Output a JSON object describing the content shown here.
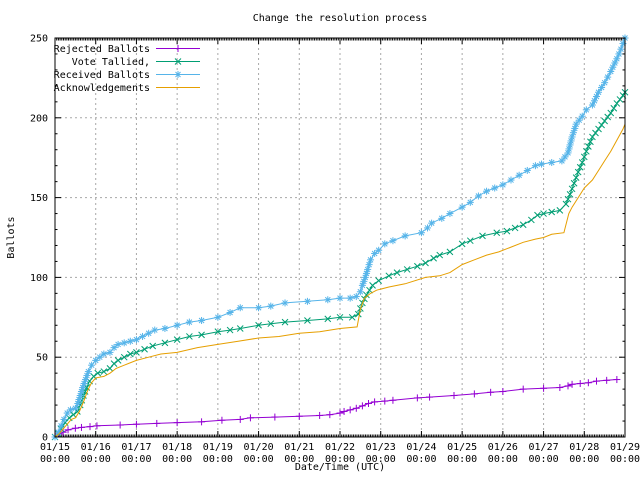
{
  "title": "Change the resolution process",
  "axes": {
    "xlabel": "Date/Time (UTC)",
    "ylabel": "Ballots",
    "x_tick_labels": [
      "01/15",
      "01/16",
      "01/17",
      "01/18",
      "01/19",
      "01/20",
      "01/21",
      "01/22",
      "01/23",
      "01/24",
      "01/25",
      "01/26",
      "01/27",
      "01/28",
      "01/29"
    ],
    "x_tick_sublabel": "00:00",
    "x_range_days": [
      0,
      14
    ],
    "x_minor_per_day": 24,
    "y_ticks": [
      0,
      50,
      100,
      150,
      200,
      250
    ],
    "y_minor_step": 10,
    "ylim": [
      0,
      250
    ],
    "grid": "dashed gray at major ticks"
  },
  "colors": {
    "background": "#ffffff",
    "border": "#000000",
    "grid": "#a8a8a8",
    "rejected": "#9400d3",
    "tallied": "#009e73",
    "received": "#56b4e9",
    "acknowledgements": "#e69f00"
  },
  "legend": {
    "position": "top-left inside",
    "entries": [
      "Rejected Ballots",
      "Vote Tallied,",
      "Received Ballots",
      "Acknowledgements"
    ]
  },
  "chart_data": {
    "type": "line",
    "title": "Change the resolution process",
    "xlabel": "Date/Time (UTC)",
    "ylabel": "Ballots",
    "x_unit": "days since 01/15 00:00 UTC",
    "xlim": [
      0,
      14
    ],
    "ylim": [
      0,
      250
    ],
    "legend_position": "top-left",
    "series": [
      {
        "name": "Rejected Ballots",
        "color": "#9400d3",
        "marker": "plus",
        "points": [
          [
            0,
            0
          ],
          [
            0.1,
            2
          ],
          [
            0.2,
            3
          ],
          [
            0.32,
            4.5
          ],
          [
            0.5,
            5.5
          ],
          [
            0.65,
            6
          ],
          [
            0.86,
            6.5
          ],
          [
            1.03,
            7
          ],
          [
            1.6,
            7.5
          ],
          [
            2.0,
            8
          ],
          [
            2.5,
            8.5
          ],
          [
            3.0,
            9
          ],
          [
            3.6,
            9.5
          ],
          [
            4.1,
            10.5
          ],
          [
            4.55,
            11
          ],
          [
            4.8,
            12
          ],
          [
            5.4,
            12.5
          ],
          [
            6.0,
            13
          ],
          [
            6.5,
            13.5
          ],
          [
            6.75,
            14
          ],
          [
            7.0,
            15
          ],
          [
            7.1,
            16
          ],
          [
            7.25,
            17
          ],
          [
            7.4,
            18
          ],
          [
            7.55,
            19.5
          ],
          [
            7.7,
            21
          ],
          [
            7.85,
            22
          ],
          [
            8.1,
            22.5
          ],
          [
            8.3,
            23
          ],
          [
            8.9,
            24.5
          ],
          [
            9.2,
            25
          ],
          [
            9.8,
            26
          ],
          [
            10.3,
            27
          ],
          [
            10.7,
            28
          ],
          [
            11.0,
            28.5
          ],
          [
            11.5,
            30
          ],
          [
            12.0,
            30.5
          ],
          [
            12.4,
            31
          ],
          [
            12.6,
            32
          ],
          [
            12.7,
            33
          ],
          [
            12.9,
            33.5
          ],
          [
            13.1,
            34
          ],
          [
            13.3,
            35
          ],
          [
            13.55,
            35.5
          ],
          [
            13.8,
            36
          ]
        ]
      },
      {
        "name": "Vote Tallied,",
        "color": "#009e73",
        "marker": "cross",
        "points": [
          [
            0,
            0
          ],
          [
            0.08,
            2
          ],
          [
            0.15,
            5
          ],
          [
            0.25,
            9
          ],
          [
            0.35,
            12
          ],
          [
            0.45,
            14
          ],
          [
            0.55,
            16
          ],
          [
            0.62,
            20
          ],
          [
            0.7,
            26
          ],
          [
            0.78,
            31
          ],
          [
            0.85,
            35
          ],
          [
            0.95,
            38
          ],
          [
            1.05,
            40
          ],
          [
            1.2,
            41
          ],
          [
            1.35,
            43
          ],
          [
            1.45,
            46
          ],
          [
            1.55,
            48
          ],
          [
            1.7,
            50
          ],
          [
            1.85,
            52
          ],
          [
            2.0,
            53
          ],
          [
            2.2,
            55
          ],
          [
            2.4,
            57
          ],
          [
            2.7,
            59
          ],
          [
            3.0,
            61
          ],
          [
            3.3,
            63
          ],
          [
            3.6,
            64
          ],
          [
            4.0,
            66
          ],
          [
            4.3,
            67
          ],
          [
            4.55,
            68
          ],
          [
            5.0,
            70
          ],
          [
            5.3,
            71
          ],
          [
            5.65,
            72
          ],
          [
            6.2,
            73
          ],
          [
            6.7,
            74
          ],
          [
            7.0,
            75
          ],
          [
            7.3,
            75
          ],
          [
            7.45,
            77
          ],
          [
            7.55,
            84
          ],
          [
            7.65,
            89
          ],
          [
            7.8,
            95
          ],
          [
            7.95,
            98
          ],
          [
            8.2,
            101
          ],
          [
            8.4,
            103
          ],
          [
            8.65,
            105
          ],
          [
            8.9,
            107
          ],
          [
            9.1,
            109
          ],
          [
            9.3,
            112
          ],
          [
            9.45,
            114
          ],
          [
            9.7,
            116
          ],
          [
            10.0,
            121
          ],
          [
            10.2,
            123
          ],
          [
            10.5,
            126
          ],
          [
            10.85,
            128
          ],
          [
            11.1,
            129
          ],
          [
            11.3,
            131
          ],
          [
            11.5,
            133
          ],
          [
            11.7,
            136
          ],
          [
            11.85,
            139
          ],
          [
            12.0,
            140
          ],
          [
            12.2,
            141
          ],
          [
            12.4,
            142
          ],
          [
            12.55,
            146
          ],
          [
            12.65,
            152
          ],
          [
            12.75,
            159
          ],
          [
            12.85,
            166
          ],
          [
            12.95,
            172
          ],
          [
            13.05,
            179
          ],
          [
            13.2,
            188
          ],
          [
            13.35,
            193
          ],
          [
            13.5,
            198
          ],
          [
            13.65,
            203
          ],
          [
            13.8,
            209
          ],
          [
            13.95,
            214
          ],
          [
            14.0,
            216
          ]
        ]
      },
      {
        "name": "Received Ballots",
        "color": "#56b4e9",
        "marker": "star",
        "points": [
          [
            0,
            0
          ],
          [
            0.08,
            3
          ],
          [
            0.15,
            7
          ],
          [
            0.22,
            11
          ],
          [
            0.3,
            15
          ],
          [
            0.38,
            17
          ],
          [
            0.5,
            18
          ],
          [
            0.56,
            21
          ],
          [
            0.62,
            26
          ],
          [
            0.68,
            31
          ],
          [
            0.75,
            36
          ],
          [
            0.82,
            41
          ],
          [
            0.9,
            45
          ],
          [
            1.0,
            48
          ],
          [
            1.1,
            50
          ],
          [
            1.2,
            52
          ],
          [
            1.35,
            53
          ],
          [
            1.45,
            56
          ],
          [
            1.55,
            58
          ],
          [
            1.7,
            59
          ],
          [
            1.85,
            60
          ],
          [
            2.0,
            61
          ],
          [
            2.15,
            63
          ],
          [
            2.3,
            65
          ],
          [
            2.45,
            67
          ],
          [
            2.7,
            68
          ],
          [
            3.0,
            70
          ],
          [
            3.3,
            72
          ],
          [
            3.6,
            73
          ],
          [
            4.0,
            75
          ],
          [
            4.3,
            78
          ],
          [
            4.55,
            81
          ],
          [
            5.0,
            81
          ],
          [
            5.3,
            82
          ],
          [
            5.65,
            84
          ],
          [
            6.2,
            85
          ],
          [
            6.7,
            86
          ],
          [
            7.0,
            87
          ],
          [
            7.25,
            87
          ],
          [
            7.4,
            88
          ],
          [
            7.5,
            91
          ],
          [
            7.55,
            95
          ],
          [
            7.62,
            100
          ],
          [
            7.68,
            105
          ],
          [
            7.75,
            111
          ],
          [
            7.85,
            115
          ],
          [
            7.95,
            117
          ],
          [
            8.1,
            121
          ],
          [
            8.3,
            123
          ],
          [
            8.6,
            126
          ],
          [
            9.0,
            128
          ],
          [
            9.15,
            131
          ],
          [
            9.25,
            134
          ],
          [
            9.5,
            137
          ],
          [
            9.7,
            140
          ],
          [
            10.0,
            144
          ],
          [
            10.2,
            147
          ],
          [
            10.4,
            151
          ],
          [
            10.6,
            154
          ],
          [
            10.8,
            156
          ],
          [
            11.0,
            158
          ],
          [
            11.2,
            161
          ],
          [
            11.4,
            164
          ],
          [
            11.6,
            167
          ],
          [
            11.8,
            170
          ],
          [
            11.95,
            171
          ],
          [
            12.2,
            172
          ],
          [
            12.45,
            173
          ],
          [
            12.6,
            178
          ],
          [
            12.7,
            188
          ],
          [
            12.8,
            196
          ],
          [
            12.95,
            201
          ],
          [
            13.05,
            205
          ],
          [
            13.2,
            208
          ],
          [
            13.35,
            216
          ],
          [
            13.5,
            222
          ],
          [
            13.65,
            229
          ],
          [
            13.8,
            237
          ],
          [
            13.9,
            243
          ],
          [
            14.0,
            250
          ]
        ]
      },
      {
        "name": "Acknowledgements",
        "color": "#e69f00",
        "marker": "none",
        "points": [
          [
            0,
            0
          ],
          [
            0.1,
            2
          ],
          [
            0.2,
            5
          ],
          [
            0.3,
            8
          ],
          [
            0.4,
            11
          ],
          [
            0.5,
            12
          ],
          [
            0.6,
            16
          ],
          [
            0.7,
            22
          ],
          [
            0.8,
            29
          ],
          [
            0.9,
            34
          ],
          [
            1.0,
            37
          ],
          [
            1.2,
            38
          ],
          [
            1.35,
            40
          ],
          [
            1.5,
            43
          ],
          [
            1.7,
            45
          ],
          [
            2.0,
            48
          ],
          [
            2.3,
            50
          ],
          [
            2.6,
            52
          ],
          [
            3.0,
            53
          ],
          [
            3.5,
            56
          ],
          [
            4.0,
            58
          ],
          [
            4.5,
            60
          ],
          [
            5.0,
            62
          ],
          [
            5.5,
            63
          ],
          [
            6.0,
            65
          ],
          [
            6.5,
            66
          ],
          [
            7.0,
            68
          ],
          [
            7.42,
            69
          ],
          [
            7.5,
            80
          ],
          [
            7.6,
            87
          ],
          [
            7.75,
            90
          ],
          [
            7.9,
            92
          ],
          [
            8.2,
            94
          ],
          [
            8.6,
            96
          ],
          [
            9.1,
            100
          ],
          [
            9.45,
            101
          ],
          [
            9.7,
            103
          ],
          [
            10.0,
            108
          ],
          [
            10.3,
            111
          ],
          [
            10.6,
            114
          ],
          [
            10.9,
            116
          ],
          [
            11.2,
            119
          ],
          [
            11.5,
            122
          ],
          [
            11.8,
            124
          ],
          [
            12.0,
            125
          ],
          [
            12.2,
            127
          ],
          [
            12.5,
            128
          ],
          [
            12.62,
            140
          ],
          [
            12.7,
            144
          ],
          [
            12.85,
            150
          ],
          [
            13.0,
            156
          ],
          [
            13.2,
            161
          ],
          [
            13.35,
            167
          ],
          [
            13.5,
            173
          ],
          [
            13.65,
            179
          ],
          [
            13.8,
            186
          ],
          [
            13.95,
            193
          ],
          [
            14.0,
            196
          ]
        ]
      }
    ]
  }
}
